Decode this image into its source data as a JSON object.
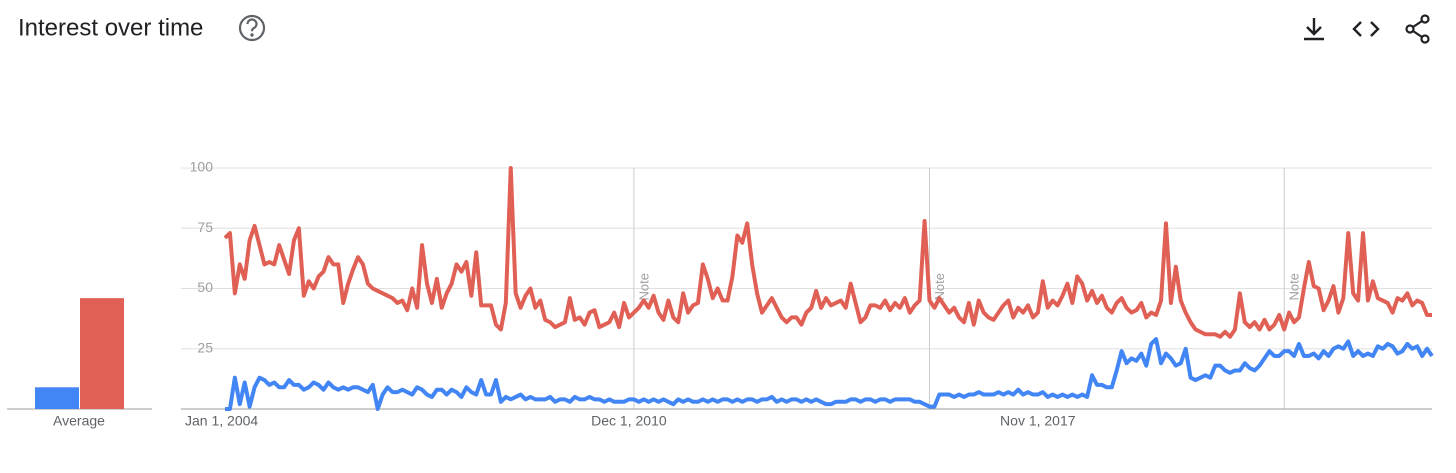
{
  "header": {
    "title": "Interest over time"
  },
  "chart_data": {
    "type": "line",
    "categories": [
      "Jan 1, 2004",
      null,
      null,
      null,
      null,
      null,
      null,
      null,
      null,
      null,
      null,
      null,
      null,
      null,
      null,
      null,
      null,
      null,
      null,
      null,
      null,
      null,
      null,
      null,
      null,
      null,
      null,
      null,
      null,
      null,
      null,
      null,
      null,
      null,
      null,
      null,
      null,
      null,
      null,
      null,
      null,
      null,
      null,
      null,
      null,
      null,
      null,
      null,
      null,
      null,
      null,
      null,
      null,
      null,
      null,
      null,
      null,
      null,
      null,
      null,
      null,
      null,
      null,
      null,
      null,
      null,
      null,
      null,
      null,
      null,
      null,
      null,
      null,
      null,
      null,
      null,
      null,
      null,
      null,
      null,
      null,
      null,
      null,
      "Dec 1, 2010",
      null,
      null,
      null,
      null,
      null,
      null,
      null,
      null,
      null,
      null,
      null,
      null,
      null,
      null,
      null,
      null,
      null,
      null,
      null,
      null,
      null,
      null,
      null,
      null,
      null,
      null,
      null,
      null,
      null,
      null,
      null,
      null,
      null,
      null,
      null,
      null,
      null,
      null,
      null,
      null,
      null,
      null,
      null,
      null,
      null,
      null,
      null,
      null,
      null,
      null,
      null,
      null,
      null,
      null,
      null,
      null,
      null,
      null,
      null,
      null,
      null,
      null,
      null,
      null,
      null,
      null,
      null,
      null,
      null,
      null,
      null,
      null,
      null,
      null,
      null,
      null,
      null,
      null,
      null,
      null,
      null,
      null,
      "Nov 1, 2017",
      null,
      null,
      null,
      null,
      null,
      null,
      null,
      null,
      null,
      null,
      null,
      null,
      null,
      null,
      null,
      null,
      null,
      null,
      null,
      null,
      null,
      null,
      null,
      null,
      null,
      null,
      null,
      null,
      null,
      null,
      null,
      null,
      null,
      null,
      null,
      null,
      null,
      null,
      null,
      null,
      null,
      null,
      null,
      null,
      null,
      null,
      null,
      null,
      null,
      null,
      null,
      null,
      null,
      null,
      null,
      null,
      null,
      null,
      null,
      null,
      null,
      null,
      null,
      null,
      null,
      null,
      null,
      null,
      null,
      null,
      null,
      null,
      null,
      null,
      null,
      null,
      null,
      null,
      null
    ],
    "series": [
      {
        "color": "#4285f4",
        "values": [
          0,
          0,
          13,
          2,
          11,
          1,
          9,
          13,
          12,
          10,
          11,
          9,
          9,
          12,
          10,
          10,
          8,
          9,
          11,
          10,
          8,
          11,
          9,
          8,
          9,
          8,
          9,
          9,
          8,
          7,
          10,
          0,
          6,
          9,
          7,
          7,
          8,
          7,
          6,
          9,
          8,
          6,
          5,
          8,
          8,
          6,
          8,
          7,
          5,
          9,
          7,
          6,
          12,
          6,
          6,
          12,
          3,
          5,
          4,
          5,
          6,
          4,
          5,
          4,
          4,
          4,
          5,
          3,
          4,
          4,
          3,
          5,
          4,
          4,
          5,
          4,
          4,
          3,
          4,
          3,
          3,
          3,
          4,
          4,
          3,
          4,
          3,
          4,
          3,
          4,
          3,
          2,
          4,
          3,
          4,
          3,
          3,
          4,
          3,
          4,
          3,
          4,
          4,
          3,
          4,
          3,
          4,
          4,
          3,
          4,
          4,
          5,
          3,
          4,
          3,
          4,
          4,
          3,
          4,
          3,
          4,
          3,
          2,
          2,
          3,
          3,
          3,
          4,
          4,
          3,
          4,
          4,
          3,
          4,
          4,
          3,
          4,
          4,
          4,
          4,
          3,
          3,
          2,
          1,
          1,
          6,
          6,
          6,
          5,
          6,
          5,
          6,
          6,
          7,
          6,
          6,
          6,
          7,
          6,
          7,
          6,
          8,
          6,
          7,
          6,
          6,
          7,
          5,
          6,
          5,
          6,
          5,
          6,
          5,
          6,
          5,
          14,
          10,
          10,
          9,
          9,
          16,
          24,
          19,
          21,
          20,
          23,
          18,
          27,
          29,
          19,
          23,
          21,
          18,
          19,
          25,
          13,
          12,
          13,
          14,
          13,
          18,
          18,
          16,
          15,
          16,
          16,
          19,
          17,
          16,
          18,
          21,
          24,
          22,
          22,
          24,
          24,
          22,
          27,
          22,
          22,
          23,
          21,
          24,
          22,
          25,
          26,
          25,
          28,
          22,
          24,
          22,
          23,
          22,
          26,
          25,
          27,
          26,
          23,
          24,
          27,
          25,
          26,
          22,
          25,
          22
        ]
      },
      {
        "color": "#e06055",
        "values": [
          71,
          73,
          48,
          60,
          54,
          70,
          76,
          68,
          60,
          61,
          60,
          68,
          62,
          56,
          70,
          75,
          47,
          53,
          50,
          55,
          57,
          63,
          60,
          60,
          44,
          52,
          58,
          63,
          60,
          52,
          50,
          49,
          48,
          47,
          46,
          44,
          45,
          41,
          50,
          42,
          68,
          52,
          44,
          54,
          42,
          48,
          52,
          60,
          57,
          61,
          47,
          65,
          43,
          43,
          43,
          35,
          33,
          44,
          100,
          48,
          42,
          47,
          50,
          42,
          45,
          37,
          36,
          34,
          35,
          36,
          46,
          37,
          38,
          35,
          40,
          41,
          34,
          35,
          36,
          40,
          34,
          44,
          38,
          40,
          42,
          45,
          42,
          47,
          40,
          37,
          45,
          38,
          36,
          48,
          40,
          43,
          44,
          60,
          54,
          46,
          50,
          45,
          45,
          55,
          72,
          69,
          77,
          60,
          48,
          40,
          43,
          46,
          42,
          38,
          36,
          38,
          38,
          35,
          40,
          42,
          49,
          42,
          46,
          43,
          44,
          45,
          42,
          52,
          44,
          36,
          38,
          43,
          43,
          42,
          45,
          41,
          44,
          42,
          46,
          40,
          43,
          45,
          78,
          45,
          42,
          46,
          43,
          40,
          42,
          38,
          36,
          44,
          35,
          45,
          40,
          38,
          37,
          40,
          43,
          45,
          38,
          42,
          40,
          43,
          38,
          40,
          53,
          42,
          45,
          43,
          47,
          52,
          44,
          55,
          52,
          45,
          49,
          44,
          47,
          42,
          40,
          44,
          46,
          42,
          40,
          41,
          44,
          38,
          40,
          39,
          45,
          77,
          44,
          59,
          45,
          40,
          36,
          33,
          32,
          31,
          31,
          31,
          30,
          32,
          30,
          33,
          48,
          36,
          34,
          36,
          33,
          37,
          33,
          35,
          39,
          33,
          40,
          36,
          38,
          50,
          61,
          51,
          50,
          41,
          45,
          51,
          40,
          46,
          73,
          48,
          45,
          73,
          45,
          53,
          46,
          45,
          44,
          40,
          46,
          45,
          48,
          43,
          45,
          44,
          39,
          39
        ]
      }
    ],
    "ylim": [
      0,
      100
    ],
    "yticks": [
      25,
      50,
      75,
      100
    ],
    "grid": true,
    "notes": [
      {
        "text": "Note",
        "at": 83
      },
      {
        "text": "Note",
        "at": 143
      },
      {
        "text": "Note",
        "at": 215
      }
    ],
    "average": {
      "label": "Average",
      "values": [
        9,
        46
      ]
    }
  }
}
